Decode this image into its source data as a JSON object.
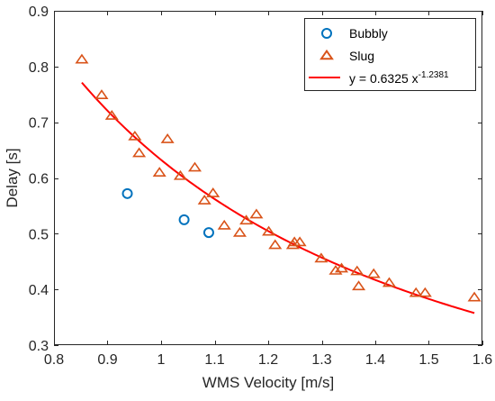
{
  "chart_data": {
    "type": "scatter",
    "xlabel": "WMS Velocity [m/s]",
    "ylabel": "Delay [s]",
    "xlim": [
      0.8,
      1.6
    ],
    "ylim": [
      0.3,
      0.9
    ],
    "xticks": [
      "0.8",
      "0.9",
      "1",
      "1.1",
      "1.2",
      "1.3",
      "1.4",
      "1.5",
      "1.6"
    ],
    "yticks": [
      "0.3",
      "0.4",
      "0.5",
      "0.6",
      "0.7",
      "0.8",
      "0.9"
    ],
    "grid": false,
    "legend_position": "top-right",
    "series": [
      {
        "name": "Bubbly",
        "marker": "circle",
        "color": "#0072bd",
        "x": [
          0.937,
          1.043,
          1.089
        ],
        "y": [
          0.572,
          0.525,
          0.502
        ]
      },
      {
        "name": "Slug",
        "marker": "triangle",
        "color": "#d95319",
        "x": [
          0.852,
          0.889,
          0.908,
          0.951,
          0.959,
          0.997,
          1.012,
          1.036,
          1.063,
          1.081,
          1.097,
          1.118,
          1.147,
          1.159,
          1.178,
          1.201,
          1.213,
          1.246,
          1.249,
          1.259,
          1.299,
          1.326,
          1.337,
          1.366,
          1.369,
          1.397,
          1.426,
          1.476,
          1.493,
          1.585
        ],
        "y": [
          0.812,
          0.748,
          0.711,
          0.674,
          0.644,
          0.609,
          0.669,
          0.603,
          0.618,
          0.559,
          0.572,
          0.514,
          0.501,
          0.523,
          0.534,
          0.503,
          0.479,
          0.479,
          0.484,
          0.484,
          0.455,
          0.433,
          0.437,
          0.432,
          0.405,
          0.427,
          0.411,
          0.393,
          0.393,
          0.385
        ]
      },
      {
        "name": "y = 0.6325 x^-1.2381",
        "legend_text": "y = 0.6325 x",
        "legend_superscript": "-1.2381",
        "type": "line",
        "color": "#ff0000",
        "equation": {
          "a": 0.6325,
          "b": -1.2381
        },
        "x_range": [
          0.852,
          1.585
        ]
      }
    ]
  }
}
